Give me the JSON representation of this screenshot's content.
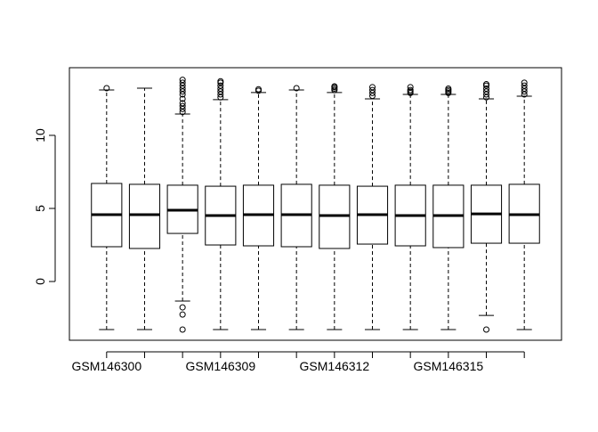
{
  "chart_data": {
    "type": "boxplot",
    "categories": [
      "GSM146300",
      null,
      null,
      "GSM146309",
      null,
      null,
      "GSM146312",
      null,
      null,
      "GSM146315",
      null,
      null
    ],
    "boxes": [
      {
        "whislo": -3.29,
        "q1": 2.38,
        "med": 4.57,
        "q3": 6.71,
        "whishi": 13.11,
        "fliers": [
          13.23
        ]
      },
      {
        "whislo": -3.29,
        "q1": 2.26,
        "med": 4.57,
        "q3": 6.65,
        "whishi": 13.23,
        "fliers": []
      },
      {
        "whislo": -1.34,
        "q1": 3.29,
        "med": 4.88,
        "q3": 6.59,
        "whishi": 11.46,
        "fliers": [
          11.6,
          11.8,
          12.0,
          12.2,
          12.5,
          12.8,
          13.0,
          13.2,
          13.4,
          13.6,
          13.8,
          -1.77,
          -2.26,
          -3.29
        ]
      },
      {
        "whislo": -3.29,
        "q1": 2.5,
        "med": 4.51,
        "q3": 6.52,
        "whishi": 12.44,
        "fliers": [
          12.6,
          12.8,
          13.0,
          13.2,
          13.4,
          13.6,
          13.7
        ]
      },
      {
        "whislo": -3.29,
        "q1": 2.44,
        "med": 4.57,
        "q3": 6.59,
        "whishi": 12.93,
        "fliers": [
          13.05,
          13.15
        ]
      },
      {
        "whislo": -3.29,
        "q1": 2.38,
        "med": 4.57,
        "q3": 6.65,
        "whishi": 13.11,
        "fliers": [
          13.23
        ]
      },
      {
        "whislo": -3.29,
        "q1": 2.26,
        "med": 4.51,
        "q3": 6.59,
        "whishi": 12.93,
        "fliers": [
          13.1,
          13.2,
          13.3,
          13.35
        ]
      },
      {
        "whislo": -3.29,
        "q1": 2.56,
        "med": 4.57,
        "q3": 6.52,
        "whishi": 12.5,
        "fliers": [
          12.7,
          12.9,
          13.1,
          13.3
        ]
      },
      {
        "whislo": -3.29,
        "q1": 2.44,
        "med": 4.51,
        "q3": 6.59,
        "whishi": 12.8,
        "fliers": [
          12.9,
          13.0,
          13.1,
          13.3
        ]
      },
      {
        "whislo": -3.29,
        "q1": 2.32,
        "med": 4.51,
        "q3": 6.59,
        "whishi": 12.8,
        "fliers": [
          12.9,
          13.0,
          13.1,
          13.2
        ]
      },
      {
        "whislo": -2.32,
        "q1": 2.62,
        "med": 4.63,
        "q3": 6.59,
        "whishi": 12.5,
        "fliers": [
          12.6,
          12.8,
          13.0,
          13.2,
          13.4,
          13.5,
          -3.29
        ]
      },
      {
        "whislo": -3.29,
        "q1": 2.62,
        "med": 4.57,
        "q3": 6.65,
        "whishi": 12.68,
        "fliers": [
          12.8,
          13.0,
          13.2,
          13.4,
          13.6
        ]
      }
    ],
    "ylim": [
      -4.02,
      14.63
    ],
    "yticks": [
      0,
      5,
      10
    ]
  }
}
